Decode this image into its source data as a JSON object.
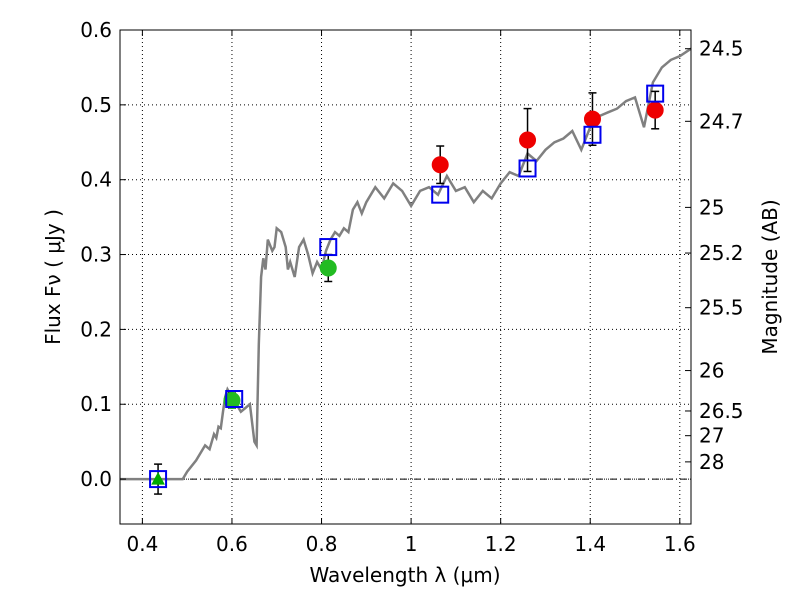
{
  "chart_data": {
    "type": "scatter",
    "xlabel": "Wavelength  λ (μm)",
    "ylabel": "Flux  Fν  ( μJy )",
    "ylabel_right": "Magnitude (AB)",
    "xlim": [
      0.35,
      1.625
    ],
    "ylim": [
      -0.06,
      0.6
    ],
    "grid": true,
    "x_ticks": [
      0.4,
      0.6,
      0.8,
      1.0,
      1.2,
      1.4,
      1.6
    ],
    "x_tick_labels": [
      "0.4",
      "0.6",
      "0.8",
      "1",
      "1.2",
      "1.4",
      "1.6"
    ],
    "y_ticks": [
      0.0,
      0.1,
      0.2,
      0.3,
      0.4,
      0.5,
      0.6
    ],
    "y_tick_labels": [
      "0.0",
      "0.1",
      "0.2",
      "0.3",
      "0.4",
      "0.5",
      "0.6"
    ],
    "mag_ticks": [
      {
        "label": "24.5",
        "flux": 0.575
      },
      {
        "label": "24.7",
        "flux": 0.478
      },
      {
        "label": "25",
        "flux": 0.363
      },
      {
        "label": "25.2",
        "flux": 0.302
      },
      {
        "label": "25.5",
        "flux": 0.229
      },
      {
        "label": "26",
        "flux": 0.145
      },
      {
        "label": "26.5",
        "flux": 0.091
      },
      {
        "label": "27",
        "flux": 0.058
      },
      {
        "label": "28",
        "flux": 0.023
      }
    ],
    "model_sed": {
      "name": "model spectrum",
      "color": "#808080",
      "x": [
        0.35,
        0.49,
        0.5,
        0.52,
        0.54,
        0.55,
        0.56,
        0.565,
        0.57,
        0.575,
        0.58,
        0.585,
        0.59,
        0.6,
        0.61,
        0.62,
        0.63,
        0.64,
        0.65,
        0.655,
        0.66,
        0.665,
        0.67,
        0.675,
        0.68,
        0.69,
        0.695,
        0.7,
        0.71,
        0.72,
        0.725,
        0.73,
        0.74,
        0.75,
        0.76,
        0.77,
        0.78,
        0.79,
        0.8,
        0.81,
        0.82,
        0.83,
        0.84,
        0.85,
        0.86,
        0.87,
        0.88,
        0.89,
        0.9,
        0.92,
        0.94,
        0.96,
        0.98,
        1.0,
        1.02,
        1.04,
        1.06,
        1.08,
        1.1,
        1.12,
        1.14,
        1.16,
        1.18,
        1.2,
        1.22,
        1.24,
        1.26,
        1.28,
        1.3,
        1.32,
        1.34,
        1.36,
        1.38,
        1.4,
        1.42,
        1.44,
        1.46,
        1.48,
        1.5,
        1.52,
        1.54,
        1.56,
        1.58,
        1.6,
        1.625
      ],
      "y": [
        0.0,
        0.0,
        0.01,
        0.025,
        0.045,
        0.04,
        0.06,
        0.055,
        0.07,
        0.068,
        0.09,
        0.11,
        0.12,
        0.11,
        0.1,
        0.09,
        0.095,
        0.1,
        0.05,
        0.045,
        0.18,
        0.27,
        0.295,
        0.28,
        0.32,
        0.305,
        0.31,
        0.335,
        0.33,
        0.31,
        0.28,
        0.29,
        0.27,
        0.31,
        0.32,
        0.3,
        0.275,
        0.29,
        0.28,
        0.305,
        0.32,
        0.33,
        0.325,
        0.335,
        0.33,
        0.36,
        0.37,
        0.355,
        0.37,
        0.39,
        0.375,
        0.395,
        0.385,
        0.365,
        0.385,
        0.39,
        0.38,
        0.405,
        0.385,
        0.39,
        0.37,
        0.385,
        0.375,
        0.395,
        0.41,
        0.405,
        0.435,
        0.425,
        0.44,
        0.45,
        0.455,
        0.465,
        0.44,
        0.47,
        0.485,
        0.49,
        0.495,
        0.505,
        0.51,
        0.47,
        0.53,
        0.55,
        0.56,
        0.565,
        0.575
      ]
    },
    "series": [
      {
        "name": "green triangle",
        "marker": "triangle",
        "color": "#00aa00",
        "x": [
          0.435
        ],
        "y": [
          0.0
        ],
        "err": [
          0.02
        ]
      },
      {
        "name": "green circles",
        "marker": "circle",
        "color": "#22bb22",
        "x": [
          0.6,
          0.815
        ],
        "y": [
          0.105,
          0.282
        ],
        "err": [
          0.01,
          0.018
        ]
      },
      {
        "name": "red circles",
        "marker": "circle",
        "color": "#ee0000",
        "x": [
          1.065,
          1.26,
          1.405,
          1.545
        ],
        "y": [
          0.42,
          0.453,
          0.481,
          0.493
        ],
        "err": [
          0.025,
          0.042,
          0.035,
          0.025
        ]
      },
      {
        "name": "model photometry",
        "marker": "square-open",
        "color": "#0000ee",
        "x": [
          0.435,
          0.605,
          0.815,
          1.065,
          1.26,
          1.405,
          1.545
        ],
        "y": [
          0.0,
          0.107,
          0.31,
          0.38,
          0.415,
          0.46,
          0.515
        ]
      }
    ]
  }
}
